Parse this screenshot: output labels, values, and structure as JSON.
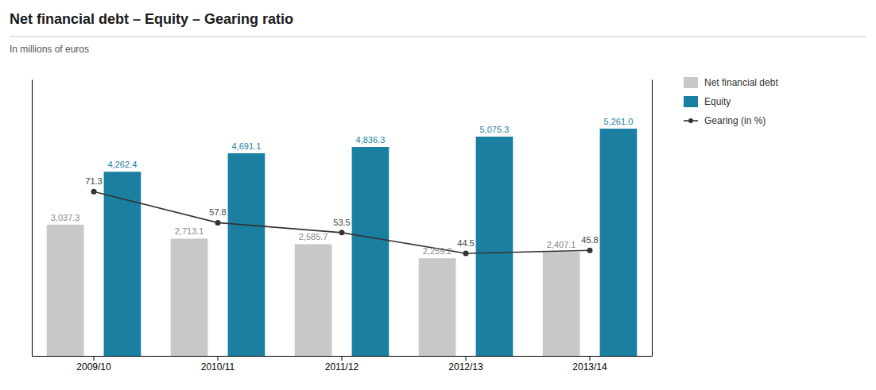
{
  "chart_data": {
    "type": "bar",
    "title": "Net financial debt – Equity – Gearing ratio",
    "subtitle": "In millions of euros",
    "categories": [
      "2009/10",
      "2010/11",
      "2011/12",
      "2012/13",
      "2013/14"
    ],
    "series": [
      {
        "name": "Net financial debt",
        "color": "#c8c8c8",
        "values": [
          3037.3,
          2713.1,
          2585.7,
          2259.2,
          2407.1
        ],
        "value_labels": [
          "3,037.3",
          "2,713.1",
          "2,585.7",
          "2,259.2",
          "2,407.1"
        ]
      },
      {
        "name": "Equity",
        "color": "#1a7fa0",
        "values": [
          4262.4,
          4691.1,
          4836.3,
          5075.3,
          5261.0
        ],
        "value_labels": [
          "4,262.4",
          "4,691.1",
          "4,836.3",
          "5,075.3",
          "5,261.0"
        ]
      },
      {
        "name": "Gearing (in %)",
        "type": "line",
        "axis": "y2",
        "color": "#333333",
        "marker": "circle",
        "values": [
          71.3,
          57.8,
          53.5,
          44.5,
          45.8
        ]
      }
    ],
    "ylim": [
      0,
      6400
    ],
    "y2lim": [
      0,
      120
    ],
    "tick_labels": "x",
    "data_labels": true,
    "legend": "right",
    "grid": false
  }
}
